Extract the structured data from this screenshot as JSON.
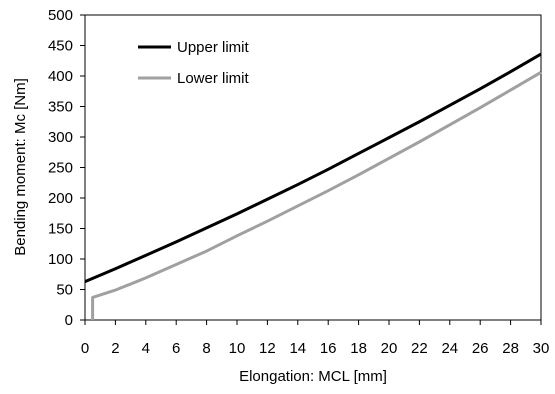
{
  "chart_data": {
    "type": "line",
    "title": "",
    "xlabel": "Elongation: MCL [mm]",
    "ylabel": "Bending moment: Mc [Nm]",
    "xlim": [
      0,
      30
    ],
    "ylim": [
      0,
      500
    ],
    "xticks": [
      0,
      2,
      4,
      6,
      8,
      10,
      12,
      14,
      16,
      18,
      20,
      22,
      24,
      26,
      28,
      30
    ],
    "yticks": [
      0,
      50,
      100,
      150,
      200,
      250,
      300,
      350,
      400,
      450,
      500
    ],
    "grid": false,
    "legend_position": "top-left",
    "series": [
      {
        "name": "Upper limit",
        "color": "#000000",
        "points": [
          [
            0,
            63
          ],
          [
            2,
            84
          ],
          [
            4,
            106
          ],
          [
            6,
            128
          ],
          [
            8,
            151
          ],
          [
            10,
            174
          ],
          [
            12,
            198
          ],
          [
            14,
            222
          ],
          [
            16,
            247
          ],
          [
            18,
            273
          ],
          [
            20,
            299
          ],
          [
            22,
            325
          ],
          [
            24,
            352
          ],
          [
            26,
            379
          ],
          [
            28,
            407
          ],
          [
            30,
            436
          ]
        ]
      },
      {
        "name": "Lower limit",
        "color": "#a0a0a0",
        "points": [
          [
            0.5,
            0
          ],
          [
            0.5,
            37
          ],
          [
            2,
            49
          ],
          [
            4,
            69
          ],
          [
            6,
            91
          ],
          [
            8,
            113
          ],
          [
            10,
            138
          ],
          [
            12,
            162
          ],
          [
            14,
            187
          ],
          [
            16,
            212
          ],
          [
            18,
            238
          ],
          [
            20,
            265
          ],
          [
            22,
            292
          ],
          [
            24,
            320
          ],
          [
            26,
            348
          ],
          [
            28,
            377
          ],
          [
            30,
            406
          ]
        ]
      }
    ]
  }
}
